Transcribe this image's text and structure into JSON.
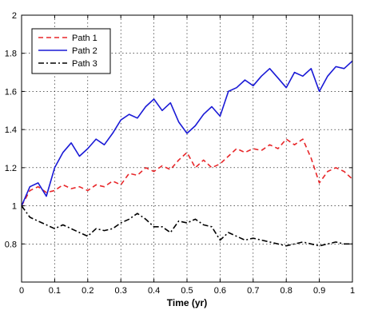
{
  "chart_data": {
    "type": "line",
    "title": "",
    "xlabel": "Time (yr)",
    "ylabel": "",
    "xlim": [
      0,
      1
    ],
    "ylim": [
      0.6,
      2.0
    ],
    "grid": true,
    "legend_position": "top-left",
    "x_ticks": [
      "0",
      "0.1",
      "0.2",
      "0.3",
      "0.4",
      "0.5",
      "0.6",
      "0.7",
      "0.8",
      "0.9",
      "1"
    ],
    "y_ticks": [
      "0.8",
      "1",
      "1.2",
      "1.4",
      "1.6",
      "1.8",
      "2"
    ],
    "x": [
      0,
      0.025,
      0.05,
      0.075,
      0.1,
      0.125,
      0.15,
      0.175,
      0.2,
      0.225,
      0.25,
      0.275,
      0.3,
      0.325,
      0.35,
      0.375,
      0.4,
      0.425,
      0.45,
      0.475,
      0.5,
      0.525,
      0.55,
      0.575,
      0.6,
      0.625,
      0.65,
      0.675,
      0.7,
      0.725,
      0.75,
      0.775,
      0.8,
      0.825,
      0.85,
      0.875,
      0.9,
      0.925,
      0.95,
      0.975,
      1.0
    ],
    "series": [
      {
        "name": "Path 1",
        "color": "#e8272a",
        "dash": "dashed",
        "values": [
          1.0,
          1.08,
          1.1,
          1.07,
          1.08,
          1.11,
          1.09,
          1.1,
          1.08,
          1.11,
          1.1,
          1.13,
          1.11,
          1.17,
          1.16,
          1.2,
          1.18,
          1.21,
          1.19,
          1.24,
          1.28,
          1.2,
          1.24,
          1.2,
          1.22,
          1.26,
          1.3,
          1.28,
          1.3,
          1.29,
          1.32,
          1.3,
          1.35,
          1.32,
          1.35,
          1.25,
          1.12,
          1.18,
          1.2,
          1.18,
          1.14
        ]
      },
      {
        "name": "Path 2",
        "color": "#1a1ad6",
        "dash": "solid",
        "values": [
          1.0,
          1.1,
          1.12,
          1.05,
          1.2,
          1.28,
          1.33,
          1.26,
          1.3,
          1.35,
          1.32,
          1.38,
          1.45,
          1.48,
          1.46,
          1.52,
          1.56,
          1.5,
          1.54,
          1.44,
          1.38,
          1.42,
          1.48,
          1.52,
          1.47,
          1.6,
          1.62,
          1.66,
          1.63,
          1.68,
          1.72,
          1.67,
          1.62,
          1.7,
          1.68,
          1.72,
          1.6,
          1.68,
          1.73,
          1.72,
          1.76
        ]
      },
      {
        "name": "Path 3",
        "color": "#000000",
        "dash": "dashdot",
        "values": [
          1.0,
          0.94,
          0.92,
          0.9,
          0.88,
          0.9,
          0.88,
          0.86,
          0.84,
          0.88,
          0.87,
          0.88,
          0.91,
          0.93,
          0.96,
          0.93,
          0.89,
          0.89,
          0.86,
          0.92,
          0.91,
          0.93,
          0.9,
          0.89,
          0.82,
          0.86,
          0.84,
          0.82,
          0.83,
          0.82,
          0.81,
          0.8,
          0.79,
          0.8,
          0.81,
          0.8,
          0.79,
          0.8,
          0.81,
          0.8,
          0.8
        ]
      }
    ]
  }
}
